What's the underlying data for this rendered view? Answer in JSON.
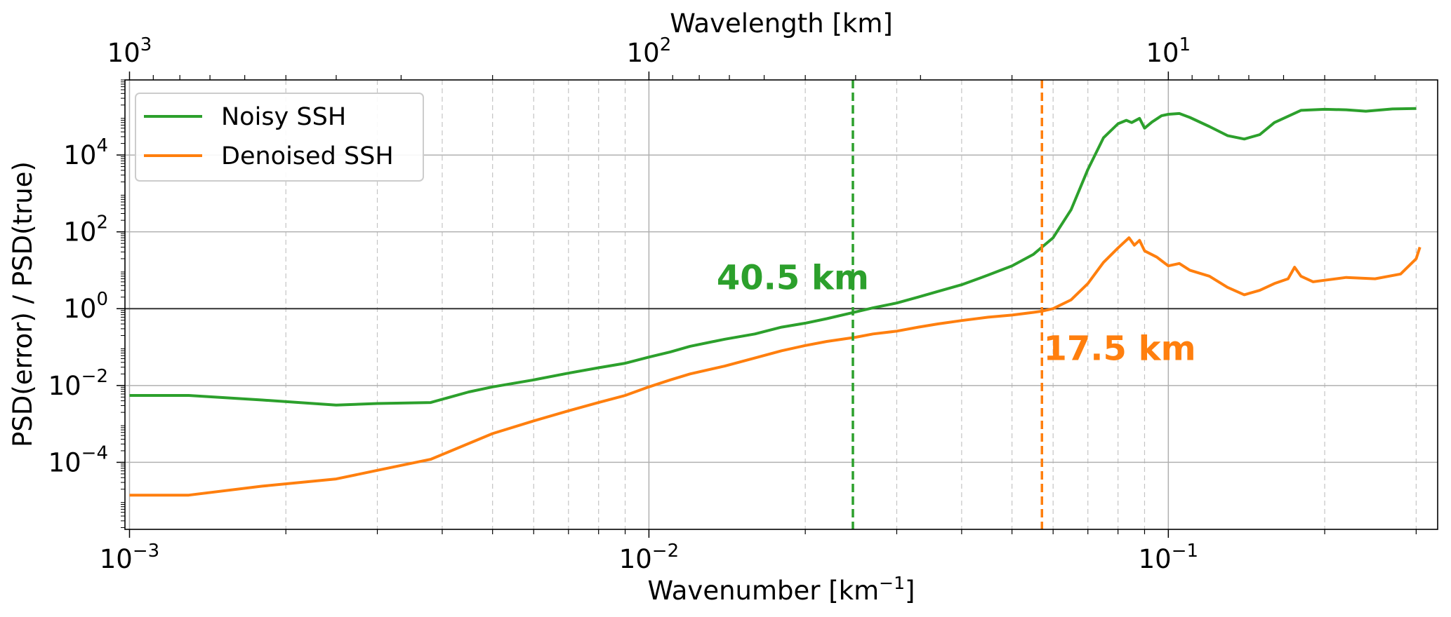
{
  "chart_data": {
    "type": "line",
    "xlabel_main": "Wavenumber [km",
    "xlabel_sup": "−1",
    "xlabel_end": "]",
    "ylabel": "PSD(error) / PSD(true)",
    "top_xlabel": "Wavelength [km]",
    "x_scale": "log",
    "y_scale": "log",
    "xlim": [
      0.00098,
      0.33
    ],
    "ylim": [
      1.8e-06,
      900000
    ],
    "grid": true,
    "legend_position": "upper-left",
    "x_ticks": [
      {
        "value": 0.001,
        "base": "10",
        "exp": "−3"
      },
      {
        "value": 0.01,
        "base": "10",
        "exp": "−2"
      },
      {
        "value": 0.1,
        "base": "10",
        "exp": "−1"
      }
    ],
    "y_ticks": [
      {
        "value": 0.0001,
        "base": "10",
        "exp": "−4"
      },
      {
        "value": 0.01,
        "base": "10",
        "exp": "−2"
      },
      {
        "value": 1,
        "base": "10",
        "exp": "0"
      },
      {
        "value": 100,
        "base": "10",
        "exp": "2"
      },
      {
        "value": 10000,
        "base": "10",
        "exp": "4"
      }
    ],
    "top_ticks": [
      {
        "wavelength": 1000,
        "base": "10",
        "exp": "3"
      },
      {
        "wavelength": 100,
        "base": "10",
        "exp": "2"
      },
      {
        "wavelength": 10,
        "base": "10",
        "exp": "1"
      }
    ],
    "reference_line_y": 1,
    "series": [
      {
        "name": "Noisy SSH",
        "color": "#2ca02c",
        "points": [
          [
            0.001,
            0.0055
          ],
          [
            0.0013,
            0.0055
          ],
          [
            0.0018,
            0.0042
          ],
          [
            0.0025,
            0.0031
          ],
          [
            0.003,
            0.0034
          ],
          [
            0.0038,
            0.0036
          ],
          [
            0.0045,
            0.0068
          ],
          [
            0.005,
            0.0092
          ],
          [
            0.006,
            0.014
          ],
          [
            0.007,
            0.021
          ],
          [
            0.008,
            0.029
          ],
          [
            0.009,
            0.038
          ],
          [
            0.01,
            0.055
          ],
          [
            0.011,
            0.075
          ],
          [
            0.012,
            0.105
          ],
          [
            0.014,
            0.16
          ],
          [
            0.016,
            0.22
          ],
          [
            0.018,
            0.33
          ],
          [
            0.02,
            0.42
          ],
          [
            0.022,
            0.55
          ],
          [
            0.0247,
            0.79
          ],
          [
            0.027,
            1.05
          ],
          [
            0.03,
            1.4
          ],
          [
            0.033,
            2.0
          ],
          [
            0.036,
            2.8
          ],
          [
            0.04,
            4.2
          ],
          [
            0.045,
            7.5
          ],
          [
            0.05,
            13
          ],
          [
            0.055,
            26
          ],
          [
            0.06,
            70
          ],
          [
            0.065,
            380
          ],
          [
            0.07,
            4200
          ],
          [
            0.075,
            28000
          ],
          [
            0.08,
            65000
          ],
          [
            0.083,
            80000
          ],
          [
            0.085,
            70000
          ],
          [
            0.088,
            90000
          ],
          [
            0.09,
            50000
          ],
          [
            0.093,
            72000
          ],
          [
            0.097,
            105000
          ],
          [
            0.1,
            115000
          ],
          [
            0.105,
            120000
          ],
          [
            0.11,
            95000
          ],
          [
            0.12,
            55000
          ],
          [
            0.13,
            32000
          ],
          [
            0.14,
            26000
          ],
          [
            0.15,
            34000
          ],
          [
            0.16,
            70000
          ],
          [
            0.18,
            145000
          ],
          [
            0.2,
            155000
          ],
          [
            0.22,
            150000
          ],
          [
            0.24,
            138000
          ],
          [
            0.27,
            158000
          ],
          [
            0.3,
            162000
          ]
        ]
      },
      {
        "name": "Denoised SSH",
        "color": "#ff7f0e",
        "points": [
          [
            0.001,
            1.4e-05
          ],
          [
            0.0013,
            1.4e-05
          ],
          [
            0.0018,
            2.4e-05
          ],
          [
            0.0025,
            3.7e-05
          ],
          [
            0.003,
            6.2e-05
          ],
          [
            0.0038,
            0.00012
          ],
          [
            0.0045,
            0.00031
          ],
          [
            0.005,
            0.00056
          ],
          [
            0.006,
            0.0012
          ],
          [
            0.007,
            0.0022
          ],
          [
            0.008,
            0.0036
          ],
          [
            0.009,
            0.0055
          ],
          [
            0.01,
            0.0092
          ],
          [
            0.011,
            0.014
          ],
          [
            0.012,
            0.02
          ],
          [
            0.014,
            0.032
          ],
          [
            0.016,
            0.052
          ],
          [
            0.018,
            0.08
          ],
          [
            0.02,
            0.11
          ],
          [
            0.022,
            0.14
          ],
          [
            0.025,
            0.18
          ],
          [
            0.027,
            0.22
          ],
          [
            0.03,
            0.26
          ],
          [
            0.033,
            0.33
          ],
          [
            0.036,
            0.4
          ],
          [
            0.04,
            0.49
          ],
          [
            0.045,
            0.6
          ],
          [
            0.05,
            0.68
          ],
          [
            0.055,
            0.8
          ],
          [
            0.0571,
            0.86
          ],
          [
            0.06,
            1.0
          ],
          [
            0.065,
            1.7
          ],
          [
            0.07,
            4.5
          ],
          [
            0.075,
            16
          ],
          [
            0.08,
            38
          ],
          [
            0.084,
            70
          ],
          [
            0.086,
            45
          ],
          [
            0.088,
            60
          ],
          [
            0.09,
            32
          ],
          [
            0.095,
            22
          ],
          [
            0.1,
            13
          ],
          [
            0.105,
            15
          ],
          [
            0.11,
            10
          ],
          [
            0.12,
            7
          ],
          [
            0.13,
            3.6
          ],
          [
            0.14,
            2.3
          ],
          [
            0.15,
            3.0
          ],
          [
            0.16,
            4.5
          ],
          [
            0.17,
            6
          ],
          [
            0.175,
            12
          ],
          [
            0.18,
            7
          ],
          [
            0.19,
            5
          ],
          [
            0.2,
            5.5
          ],
          [
            0.22,
            6.5
          ],
          [
            0.25,
            6
          ],
          [
            0.28,
            8
          ],
          [
            0.3,
            20
          ],
          [
            0.305,
            40
          ]
        ]
      }
    ],
    "vertical_lines": [
      {
        "x": 0.0247,
        "color": "#2ca02c",
        "label": "40.5 km",
        "label_x": 0.0135,
        "label_y": 3.2
      },
      {
        "x": 0.0571,
        "color": "#ff7f0e",
        "label": "17.5 km",
        "label_x": 0.0575,
        "label_y": 0.046
      }
    ]
  }
}
